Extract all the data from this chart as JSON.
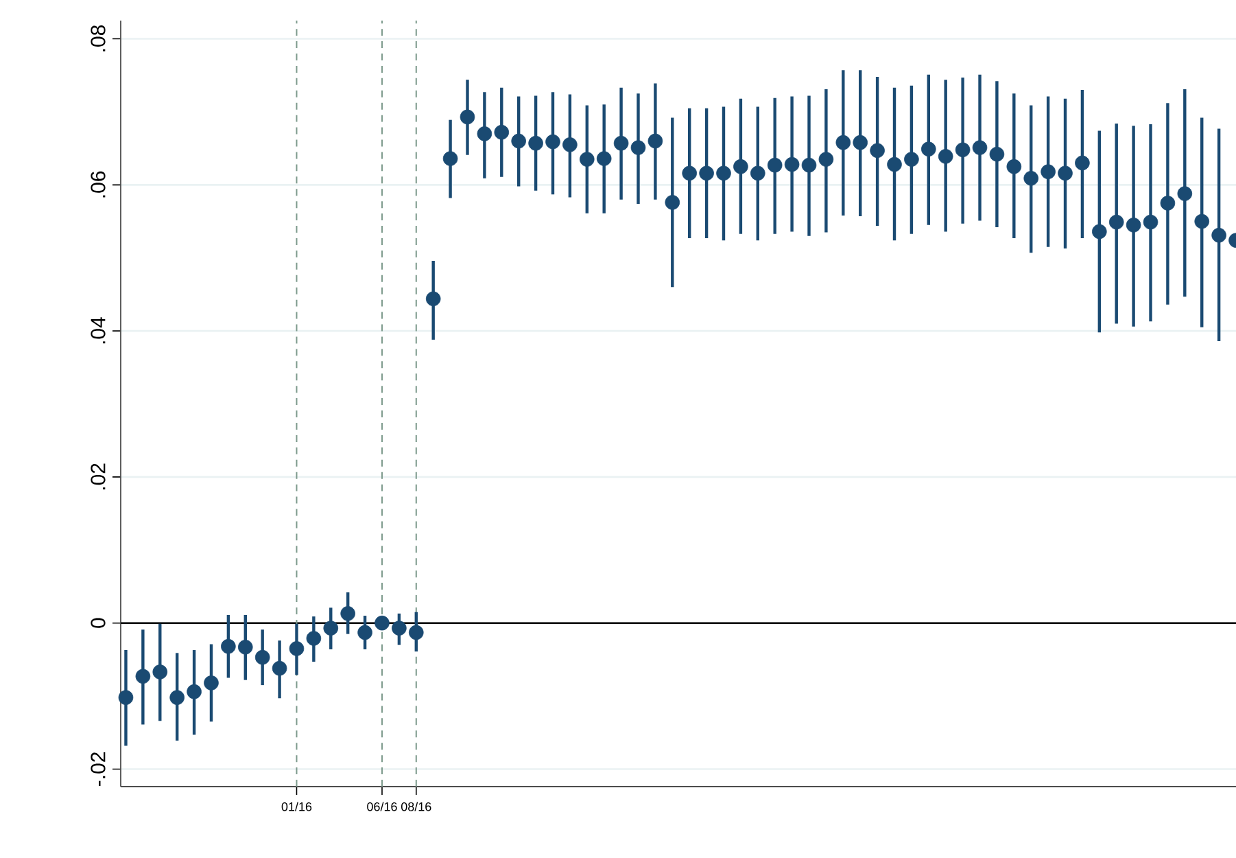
{
  "chart_data": {
    "type": "scatter",
    "x": [
      "2015-03",
      "2015-04",
      "2015-05",
      "2015-06",
      "2015-07",
      "2015-08",
      "2015-09",
      "2015-10",
      "2015-11",
      "2015-12",
      "2016-01",
      "2016-02",
      "2016-03",
      "2016-04",
      "2016-05",
      "2016-06",
      "2016-07",
      "2016-08",
      "2016-09",
      "2016-10",
      "2016-11",
      "2016-12",
      "2017-01",
      "2017-02",
      "2017-03",
      "2017-04",
      "2017-05",
      "2017-06",
      "2017-07",
      "2017-08",
      "2017-09",
      "2017-10",
      "2017-11",
      "2017-12",
      "2018-01",
      "2018-02",
      "2018-03",
      "2018-04",
      "2018-05",
      "2018-06",
      "2018-07",
      "2018-08",
      "2018-09",
      "2018-10",
      "2018-11",
      "2018-12",
      "2019-01",
      "2019-02",
      "2019-03",
      "2019-04",
      "2019-05",
      "2019-06",
      "2019-07",
      "2019-08",
      "2019-09",
      "2019-10",
      "2019-11",
      "2019-12",
      "2020-01",
      "2020-02",
      "2020-03",
      "2020-04",
      "2020-05",
      "2020-06",
      "2020-07",
      "2020-08"
    ],
    "values": [
      -0.0102,
      -0.0073,
      -0.0067,
      -0.0102,
      -0.0094,
      -0.0082,
      -0.0032,
      -0.0033,
      -0.0047,
      -0.0062,
      -0.0035,
      -0.0021,
      -0.0007,
      0.0013,
      -0.0013,
      0.0,
      -0.0007,
      -0.0013,
      0.0444,
      0.0636,
      0.0693,
      0.067,
      0.0672,
      0.066,
      0.0657,
      0.0659,
      0.0655,
      0.0635,
      0.0636,
      0.0657,
      0.0651,
      0.066,
      0.0576,
      0.0616,
      0.0616,
      0.0616,
      0.0625,
      0.0616,
      0.0627,
      0.0628,
      0.0627,
      0.0635,
      0.0658,
      0.0658,
      0.0647,
      0.0628,
      0.0635,
      0.0649,
      0.0639,
      0.0648,
      0.0651,
      0.0642,
      0.0625,
      0.0609,
      0.0618,
      0.0616,
      0.063,
      0.0536,
      0.0549,
      0.0545,
      0.0549,
      0.0575,
      0.0588,
      0.055,
      0.0531,
      0.0524
    ],
    "errors": [
      [
        -0.0168,
        -0.0037
      ],
      [
        -0.0139,
        -0.0009
      ],
      [
        -0.0134,
        -0.0001
      ],
      [
        -0.0161,
        -0.0041
      ],
      [
        -0.0153,
        -0.0037
      ],
      [
        -0.0135,
        -0.0029
      ],
      [
        -0.0075,
        0.0011
      ],
      [
        -0.0078,
        0.0011
      ],
      [
        -0.0085,
        -0.0009
      ],
      [
        -0.0103,
        -0.0024
      ],
      [
        -0.0071,
        -0.0001
      ],
      [
        -0.0053,
        0.0009
      ],
      [
        -0.0036,
        0.0021
      ],
      [
        -0.0015,
        0.0042
      ],
      [
        -0.0036,
        0.001
      ],
      null,
      [
        -0.003,
        0.0013
      ],
      [
        -0.0039,
        0.0015
      ],
      [
        0.0388,
        0.0496
      ],
      [
        0.0582,
        0.0689
      ],
      [
        0.0641,
        0.0744
      ],
      [
        0.0609,
        0.0727
      ],
      [
        0.0611,
        0.0733
      ],
      [
        0.0598,
        0.0721
      ],
      [
        0.0592,
        0.0722
      ],
      [
        0.0587,
        0.0727
      ],
      [
        0.0583,
        0.0724
      ],
      [
        0.0561,
        0.0709
      ],
      [
        0.0561,
        0.071
      ],
      [
        0.058,
        0.0733
      ],
      [
        0.0574,
        0.0725
      ],
      [
        0.058,
        0.0739
      ],
      [
        0.046,
        0.0692
      ],
      [
        0.0527,
        0.0705
      ],
      [
        0.0527,
        0.0705
      ],
      [
        0.0524,
        0.0707
      ],
      [
        0.0533,
        0.0718
      ],
      [
        0.0524,
        0.0707
      ],
      [
        0.0533,
        0.0719
      ],
      [
        0.0536,
        0.0721
      ],
      [
        0.053,
        0.0722
      ],
      [
        0.0535,
        0.0731
      ],
      [
        0.0558,
        0.0757
      ],
      [
        0.0557,
        0.0757
      ],
      [
        0.0544,
        0.0748
      ],
      [
        0.0524,
        0.0733
      ],
      [
        0.0533,
        0.0736
      ],
      [
        0.0545,
        0.0751
      ],
      [
        0.0536,
        0.0744
      ],
      [
        0.0547,
        0.0747
      ],
      [
        0.0551,
        0.0751
      ],
      [
        0.0542,
        0.0742
      ],
      [
        0.0527,
        0.0725
      ],
      [
        0.0507,
        0.0709
      ],
      [
        0.0515,
        0.0721
      ],
      [
        0.0513,
        0.0718
      ],
      [
        0.0527,
        0.073
      ],
      [
        0.0398,
        0.0674
      ],
      [
        0.041,
        0.0684
      ],
      [
        0.0406,
        0.0681
      ],
      [
        0.0413,
        0.0683
      ],
      [
        0.0436,
        0.0712
      ],
      [
        0.0447,
        0.0731
      ],
      [
        0.0405,
        0.0692
      ],
      [
        0.0386,
        0.0677
      ],
      null
    ],
    "color": "#1a4a72",
    "marker": "circle",
    "xlim": [
      "2015-02-22",
      "2020-08"
    ],
    "xticks": [
      {
        "value": "2016-01",
        "label": "01/16"
      },
      {
        "value": "2016-06",
        "label": "06/16"
      },
      {
        "value": "2016-08",
        "label": "08/16"
      }
    ],
    "ylim": [
      -0.0224,
      0.0825
    ],
    "yticks": [
      {
        "value": -0.02,
        "label": "-.02"
      },
      0,
      {
        "value": 0.02,
        "label": ".02"
      },
      {
        "value": 0.04,
        "label": ".04"
      },
      {
        "value": 0.06,
        "label": ".06"
      },
      {
        "value": 0.08,
        "label": ".08"
      }
    ],
    "grid": "y",
    "ref_lines": [
      {
        "axis": "y",
        "value": 0,
        "color": "#000000",
        "line_style": "solid"
      },
      {
        "axis": "x",
        "value": "2016-01",
        "color": "#7d9a8c",
        "line_style": "dashed"
      },
      {
        "axis": "x",
        "value": "2016-06",
        "color": "#7d9a8c",
        "line_style": "dashed"
      },
      {
        "axis": "x",
        "value": "2016-08",
        "color": "#7d9a8c",
        "line_style": "dashed"
      }
    ]
  }
}
